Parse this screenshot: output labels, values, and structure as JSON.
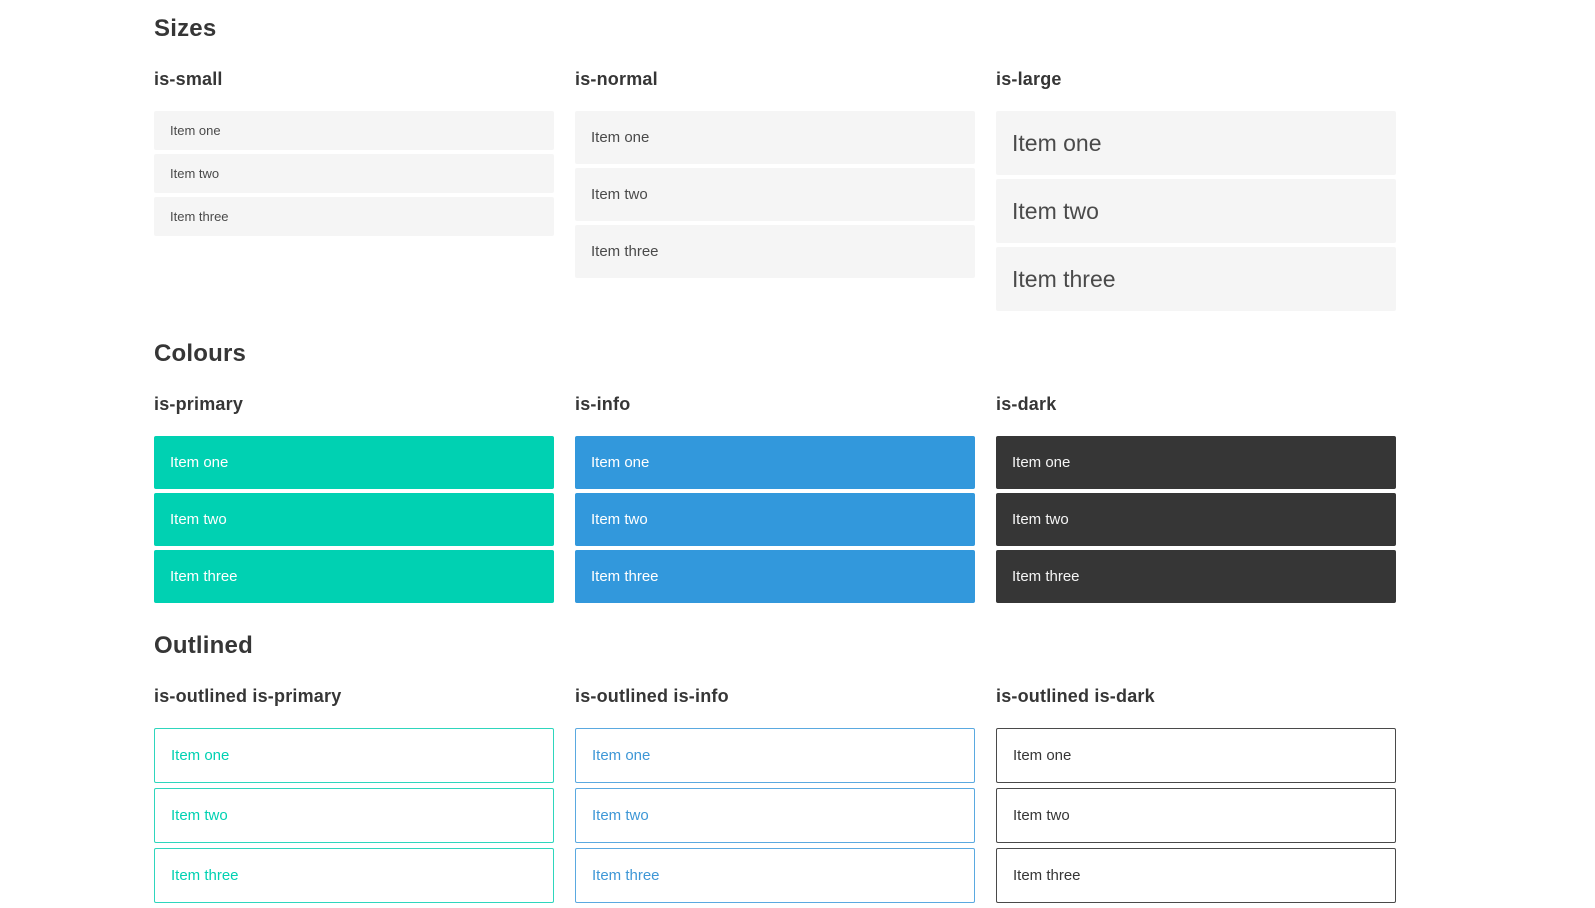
{
  "colors": {
    "primary": "#00d1b2",
    "info": "#3298dc",
    "dark": "#363636",
    "item_background": "#f5f5f5",
    "item_text": "#4a4a4a",
    "heading_text": "#363636"
  },
  "sections": [
    {
      "title": "Sizes",
      "groups": [
        {
          "label": "is-small",
          "items": [
            "Item one",
            "Item two",
            "Item three"
          ]
        },
        {
          "label": "is-normal",
          "items": [
            "Item one",
            "Item two",
            "Item three"
          ]
        },
        {
          "label": "is-large",
          "items": [
            "Item one",
            "Item two",
            "Item three"
          ]
        }
      ]
    },
    {
      "title": "Colours",
      "groups": [
        {
          "label": "is-primary",
          "items": [
            "Item one",
            "Item two",
            "Item three"
          ]
        },
        {
          "label": "is-info",
          "items": [
            "Item one",
            "Item two",
            "Item three"
          ]
        },
        {
          "label": "is-dark",
          "items": [
            "Item one",
            "Item two",
            "Item three"
          ]
        }
      ]
    },
    {
      "title": "Outlined",
      "groups": [
        {
          "label": "is-outlined is-primary",
          "items": [
            "Item one",
            "Item two",
            "Item three"
          ]
        },
        {
          "label": "is-outlined is-info",
          "items": [
            "Item one",
            "Item two",
            "Item three"
          ]
        },
        {
          "label": "is-outlined is-dark",
          "items": [
            "Item one",
            "Item two",
            "Item three"
          ]
        }
      ]
    }
  ]
}
